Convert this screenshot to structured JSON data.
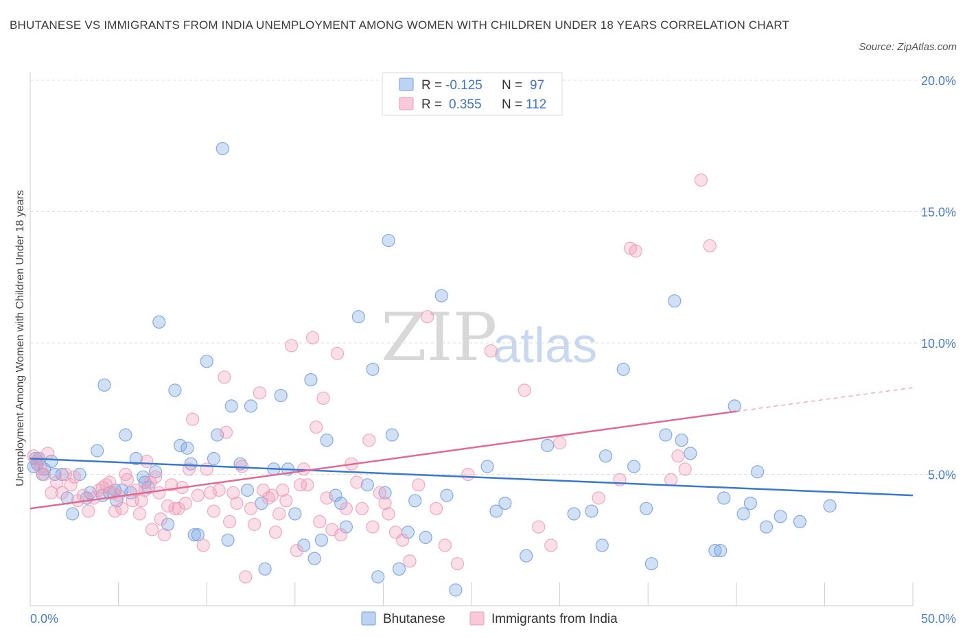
{
  "title": "BHUTANESE VS IMMIGRANTS FROM INDIA UNEMPLOYMENT AMONG WOMEN WITH CHILDREN UNDER 18 YEARS CORRELATION CHART",
  "source": "Source: ZipAtlas.com",
  "watermark": {
    "zip": "ZIP",
    "atlas": "atlas"
  },
  "colors": {
    "blue": "#6f9fdf",
    "blue_line": "#3a78cc",
    "pink": "#ee9bb6",
    "pink_line": "#e06a95",
    "axis_text": "#4a7cc4"
  },
  "legend": {
    "r_label": "R =",
    "n_label": "N =",
    "rows": [
      {
        "r": "-0.125",
        "n": "97"
      },
      {
        "r": "0.355",
        "n": "112"
      }
    ]
  },
  "chart_data": {
    "type": "scatter",
    "title": "BHUTANESE VS IMMIGRANTS FROM INDIA UNEMPLOYMENT AMONG WOMEN WITH CHILDREN UNDER 18 YEARS CORRELATION CHART",
    "xlabel": "",
    "ylabel": "Unemployment Among Women with Children Under 18 years",
    "xlim": [
      0,
      50
    ],
    "ylim": [
      0,
      20
    ],
    "x_tick_labels": [
      "0.0%",
      "50.0%"
    ],
    "y_tick_labels": [
      "5.0%",
      "10.0%",
      "15.0%",
      "20.0%"
    ],
    "y_ticks": [
      5,
      10,
      15,
      20
    ],
    "grid": "horizontal dashed",
    "legend_position": "top-center",
    "series": [
      {
        "name": "Bhutanese",
        "trend": {
          "x": [
            0,
            50
          ],
          "y": [
            5.6,
            4.2
          ]
        },
        "points": [
          [
            0.2,
            5.3
          ],
          [
            0.3,
            5.6
          ],
          [
            0.4,
            5.4
          ],
          [
            0.5,
            5.6
          ],
          [
            0.7,
            5.0
          ],
          [
            0.8,
            5.2
          ],
          [
            1.2,
            5.5
          ],
          [
            1.4,
            5.0
          ],
          [
            1.8,
            5.0
          ],
          [
            2.1,
            4.1
          ],
          [
            2.4,
            3.5
          ],
          [
            2.8,
            5.0
          ],
          [
            3.2,
            4.1
          ],
          [
            3.4,
            4.3
          ],
          [
            3.8,
            5.9
          ],
          [
            4.1,
            4.2
          ],
          [
            4.2,
            8.4
          ],
          [
            4.5,
            4.3
          ],
          [
            4.8,
            4.4
          ],
          [
            4.9,
            4.0
          ],
          [
            5.2,
            4.4
          ],
          [
            5.4,
            6.5
          ],
          [
            5.7,
            4.3
          ],
          [
            6.0,
            5.6
          ],
          [
            6.4,
            4.9
          ],
          [
            6.5,
            4.7
          ],
          [
            6.7,
            4.5
          ],
          [
            7.1,
            5.1
          ],
          [
            7.3,
            10.8
          ],
          [
            7.8,
            3.1
          ],
          [
            8.2,
            8.2
          ],
          [
            8.5,
            6.1
          ],
          [
            8.9,
            6.0
          ],
          [
            9.1,
            5.4
          ],
          [
            9.3,
            2.7
          ],
          [
            9.5,
            2.7
          ],
          [
            10.0,
            9.3
          ],
          [
            10.4,
            5.6
          ],
          [
            10.6,
            6.5
          ],
          [
            10.9,
            17.4
          ],
          [
            11.2,
            2.5
          ],
          [
            11.4,
            7.6
          ],
          [
            11.9,
            5.4
          ],
          [
            12.3,
            4.4
          ],
          [
            12.5,
            7.6
          ],
          [
            13.1,
            3.9
          ],
          [
            13.3,
            1.4
          ],
          [
            13.8,
            5.2
          ],
          [
            14.2,
            8.0
          ],
          [
            14.6,
            5.2
          ],
          [
            15.0,
            3.5
          ],
          [
            15.5,
            2.3
          ],
          [
            15.9,
            8.6
          ],
          [
            16.1,
            1.8
          ],
          [
            16.5,
            2.5
          ],
          [
            16.8,
            6.3
          ],
          [
            17.3,
            4.2
          ],
          [
            17.6,
            3.9
          ],
          [
            17.9,
            3.0
          ],
          [
            18.6,
            11.0
          ],
          [
            19.1,
            4.6
          ],
          [
            19.4,
            9.0
          ],
          [
            19.7,
            1.1
          ],
          [
            20.1,
            4.3
          ],
          [
            20.3,
            13.9
          ],
          [
            20.5,
            6.5
          ],
          [
            20.9,
            1.4
          ],
          [
            21.4,
            2.8
          ],
          [
            21.8,
            4.0
          ],
          [
            22.4,
            2.6
          ],
          [
            23.3,
            11.8
          ],
          [
            23.6,
            4.2
          ],
          [
            24.1,
            0.6
          ],
          [
            25.9,
            5.3
          ],
          [
            26.4,
            3.6
          ],
          [
            26.9,
            3.9
          ],
          [
            28.1,
            1.9
          ],
          [
            29.3,
            6.1
          ],
          [
            30.8,
            3.5
          ],
          [
            31.8,
            3.6
          ],
          [
            32.4,
            2.3
          ],
          [
            32.6,
            5.7
          ],
          [
            33.6,
            9.0
          ],
          [
            34.2,
            5.3
          ],
          [
            34.9,
            3.7
          ],
          [
            35.2,
            1.6
          ],
          [
            36.0,
            6.5
          ],
          [
            36.5,
            11.6
          ],
          [
            36.9,
            6.3
          ],
          [
            37.4,
            5.8
          ],
          [
            38.8,
            2.1
          ],
          [
            39.1,
            2.1
          ],
          [
            39.3,
            4.1
          ],
          [
            39.9,
            7.6
          ],
          [
            40.4,
            3.5
          ],
          [
            40.8,
            3.9
          ],
          [
            41.2,
            5.1
          ],
          [
            41.7,
            3.0
          ],
          [
            42.5,
            3.4
          ],
          [
            43.6,
            3.2
          ],
          [
            45.3,
            3.8
          ]
        ]
      },
      {
        "name": "Immigrants from India",
        "trend": {
          "x": [
            0,
            40
          ],
          "y": [
            3.7,
            7.4
          ]
        },
        "trend_extension": {
          "x": [
            40,
            50
          ],
          "y": [
            7.4,
            8.3
          ]
        },
        "points": [
          [
            0.2,
            5.7
          ],
          [
            0.4,
            5.5
          ],
          [
            0.6,
            5.2
          ],
          [
            0.8,
            5.0
          ],
          [
            1.0,
            5.8
          ],
          [
            1.2,
            4.3
          ],
          [
            1.5,
            4.7
          ],
          [
            1.8,
            4.3
          ],
          [
            2.0,
            5.0
          ],
          [
            2.3,
            4.6
          ],
          [
            2.5,
            4.9
          ],
          [
            2.7,
            4.0
          ],
          [
            3.0,
            4.2
          ],
          [
            3.3,
            3.6
          ],
          [
            3.6,
            4.1
          ],
          [
            3.9,
            4.4
          ],
          [
            4.1,
            4.5
          ],
          [
            4.3,
            4.6
          ],
          [
            4.5,
            4.7
          ],
          [
            4.7,
            4.3
          ],
          [
            4.8,
            3.6
          ],
          [
            5.0,
            4.2
          ],
          [
            5.2,
            3.7
          ],
          [
            5.4,
            5.0
          ],
          [
            5.5,
            4.8
          ],
          [
            5.8,
            4.0
          ],
          [
            6.0,
            4.4
          ],
          [
            6.2,
            3.5
          ],
          [
            6.3,
            4.0
          ],
          [
            6.5,
            4.4
          ],
          [
            6.6,
            5.5
          ],
          [
            6.8,
            4.7
          ],
          [
            6.9,
            2.9
          ],
          [
            7.1,
            4.9
          ],
          [
            7.3,
            4.3
          ],
          [
            7.4,
            3.3
          ],
          [
            7.6,
            2.7
          ],
          [
            7.8,
            3.8
          ],
          [
            8.0,
            4.6
          ],
          [
            8.2,
            3.7
          ],
          [
            8.4,
            3.7
          ],
          [
            8.6,
            4.5
          ],
          [
            8.8,
            3.9
          ],
          [
            9.0,
            5.2
          ],
          [
            9.2,
            7.1
          ],
          [
            9.5,
            4.2
          ],
          [
            9.8,
            2.3
          ],
          [
            10.0,
            5.2
          ],
          [
            10.2,
            4.3
          ],
          [
            10.4,
            3.6
          ],
          [
            10.7,
            4.4
          ],
          [
            11.0,
            8.7
          ],
          [
            11.1,
            6.6
          ],
          [
            11.3,
            3.2
          ],
          [
            11.5,
            4.3
          ],
          [
            11.7,
            3.9
          ],
          [
            12.0,
            5.3
          ],
          [
            12.2,
            1.1
          ],
          [
            12.5,
            3.7
          ],
          [
            12.7,
            3.1
          ],
          [
            13.0,
            8.1
          ],
          [
            13.2,
            4.4
          ],
          [
            13.5,
            4.1
          ],
          [
            13.7,
            4.2
          ],
          [
            13.9,
            2.8
          ],
          [
            14.1,
            3.5
          ],
          [
            14.3,
            4.4
          ],
          [
            14.5,
            4.0
          ],
          [
            14.8,
            9.9
          ],
          [
            15.1,
            2.1
          ],
          [
            15.3,
            4.6
          ],
          [
            15.5,
            5.2
          ],
          [
            15.7,
            4.6
          ],
          [
            16.0,
            10.2
          ],
          [
            16.2,
            6.8
          ],
          [
            16.4,
            3.2
          ],
          [
            16.6,
            7.9
          ],
          [
            16.8,
            4.1
          ],
          [
            17.1,
            2.9
          ],
          [
            17.4,
            9.6
          ],
          [
            17.6,
            2.7
          ],
          [
            17.9,
            3.7
          ],
          [
            18.2,
            5.4
          ],
          [
            18.5,
            4.7
          ],
          [
            18.8,
            3.7
          ],
          [
            19.2,
            6.3
          ],
          [
            19.4,
            3.0
          ],
          [
            19.8,
            4.3
          ],
          [
            20.1,
            3.9
          ],
          [
            20.3,
            3.5
          ],
          [
            20.7,
            2.8
          ],
          [
            21.1,
            2.5
          ],
          [
            21.5,
            1.7
          ],
          [
            22.0,
            4.6
          ],
          [
            22.5,
            11.0
          ],
          [
            23.0,
            3.7
          ],
          [
            23.5,
            2.3
          ],
          [
            24.2,
            1.6
          ],
          [
            24.8,
            5.0
          ],
          [
            26.1,
            9.7
          ],
          [
            28.0,
            8.2
          ],
          [
            28.8,
            3.0
          ],
          [
            29.5,
            2.3
          ],
          [
            30.0,
            6.2
          ],
          [
            32.2,
            4.1
          ],
          [
            33.4,
            4.8
          ],
          [
            34.0,
            13.6
          ],
          [
            34.3,
            13.5
          ],
          [
            36.3,
            4.8
          ],
          [
            36.7,
            5.7
          ],
          [
            37.1,
            5.2
          ],
          [
            38.0,
            16.2
          ],
          [
            38.5,
            13.7
          ]
        ]
      }
    ]
  },
  "axes": {
    "y_ticks": [
      "5.0%",
      "10.0%",
      "15.0%",
      "20.0%"
    ],
    "x_left": "0.0%",
    "x_right": "50.0%",
    "y_label": "Unemployment Among Women with Children Under 18 years"
  },
  "bottom_legend": [
    {
      "label": "Bhutanese"
    },
    {
      "label": "Immigrants from India"
    }
  ]
}
